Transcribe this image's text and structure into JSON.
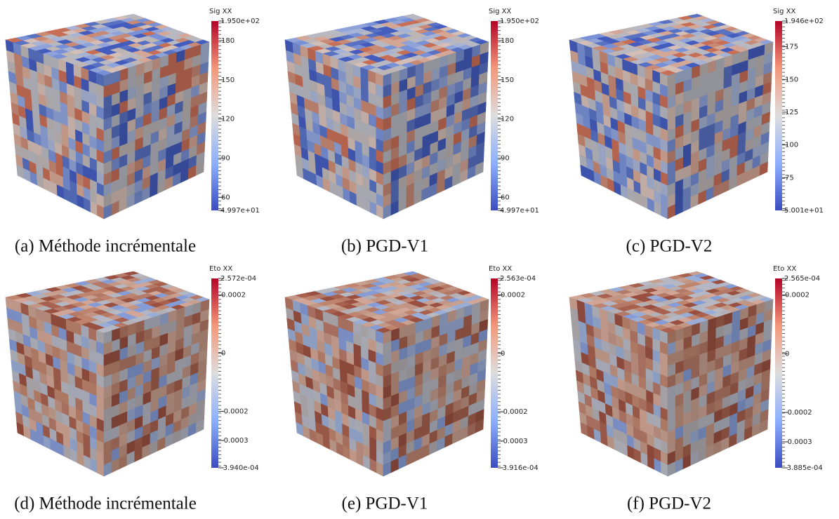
{
  "panels": [
    {
      "caption": "(a) Méthode incrémentale",
      "colorbar": {
        "title": "Sig XX",
        "max": {
          "value": 195.0,
          "label": "1.950e+02"
        },
        "min": {
          "value": 49.97,
          "label": "4.997e+01"
        },
        "ticks": [
          180,
          150,
          120,
          90,
          60
        ]
      }
    },
    {
      "caption": "(b) PGD-V1",
      "colorbar": {
        "title": "Sig XX",
        "max": {
          "value": 195.0,
          "label": "1.950e+02"
        },
        "min": {
          "value": 49.97,
          "label": "4.997e+01"
        },
        "ticks": [
          180,
          150,
          120,
          90,
          60
        ]
      }
    },
    {
      "caption": "(c) PGD-V2",
      "colorbar": {
        "title": "Sig XX",
        "max": {
          "value": 194.6,
          "label": "1.946e+02"
        },
        "min": {
          "value": 50.01,
          "label": "5.001e+01"
        },
        "ticks": [
          175,
          150,
          125,
          100,
          75
        ]
      }
    },
    {
      "caption": "(d) Méthode incrémentale",
      "colorbar": {
        "title": "Eto XX",
        "max": {
          "value": 0.0002572,
          "label": "2.572e-04"
        },
        "min": {
          "value": -0.000394,
          "label": "-3.940e-04"
        },
        "ticks": [
          0.0002,
          0,
          -0.0002,
          -0.0003
        ]
      }
    },
    {
      "caption": "(e) PGD-V1",
      "colorbar": {
        "title": "Eto XX",
        "max": {
          "value": 0.0002563,
          "label": "2.563e-04"
        },
        "min": {
          "value": -0.0003916,
          "label": "-3.916e-04"
        },
        "ticks": [
          0.0002,
          0,
          -0.0002,
          -0.0003
        ]
      }
    },
    {
      "caption": "(f) PGD-V2",
      "colorbar": {
        "title": "Eto XX",
        "max": {
          "value": 0.0002565,
          "label": "2.565e-04"
        },
        "min": {
          "value": -0.0003885,
          "label": "-3.885e-04"
        },
        "ticks": [
          0.0002,
          0,
          -0.0002,
          -0.0003
        ]
      }
    }
  ]
}
